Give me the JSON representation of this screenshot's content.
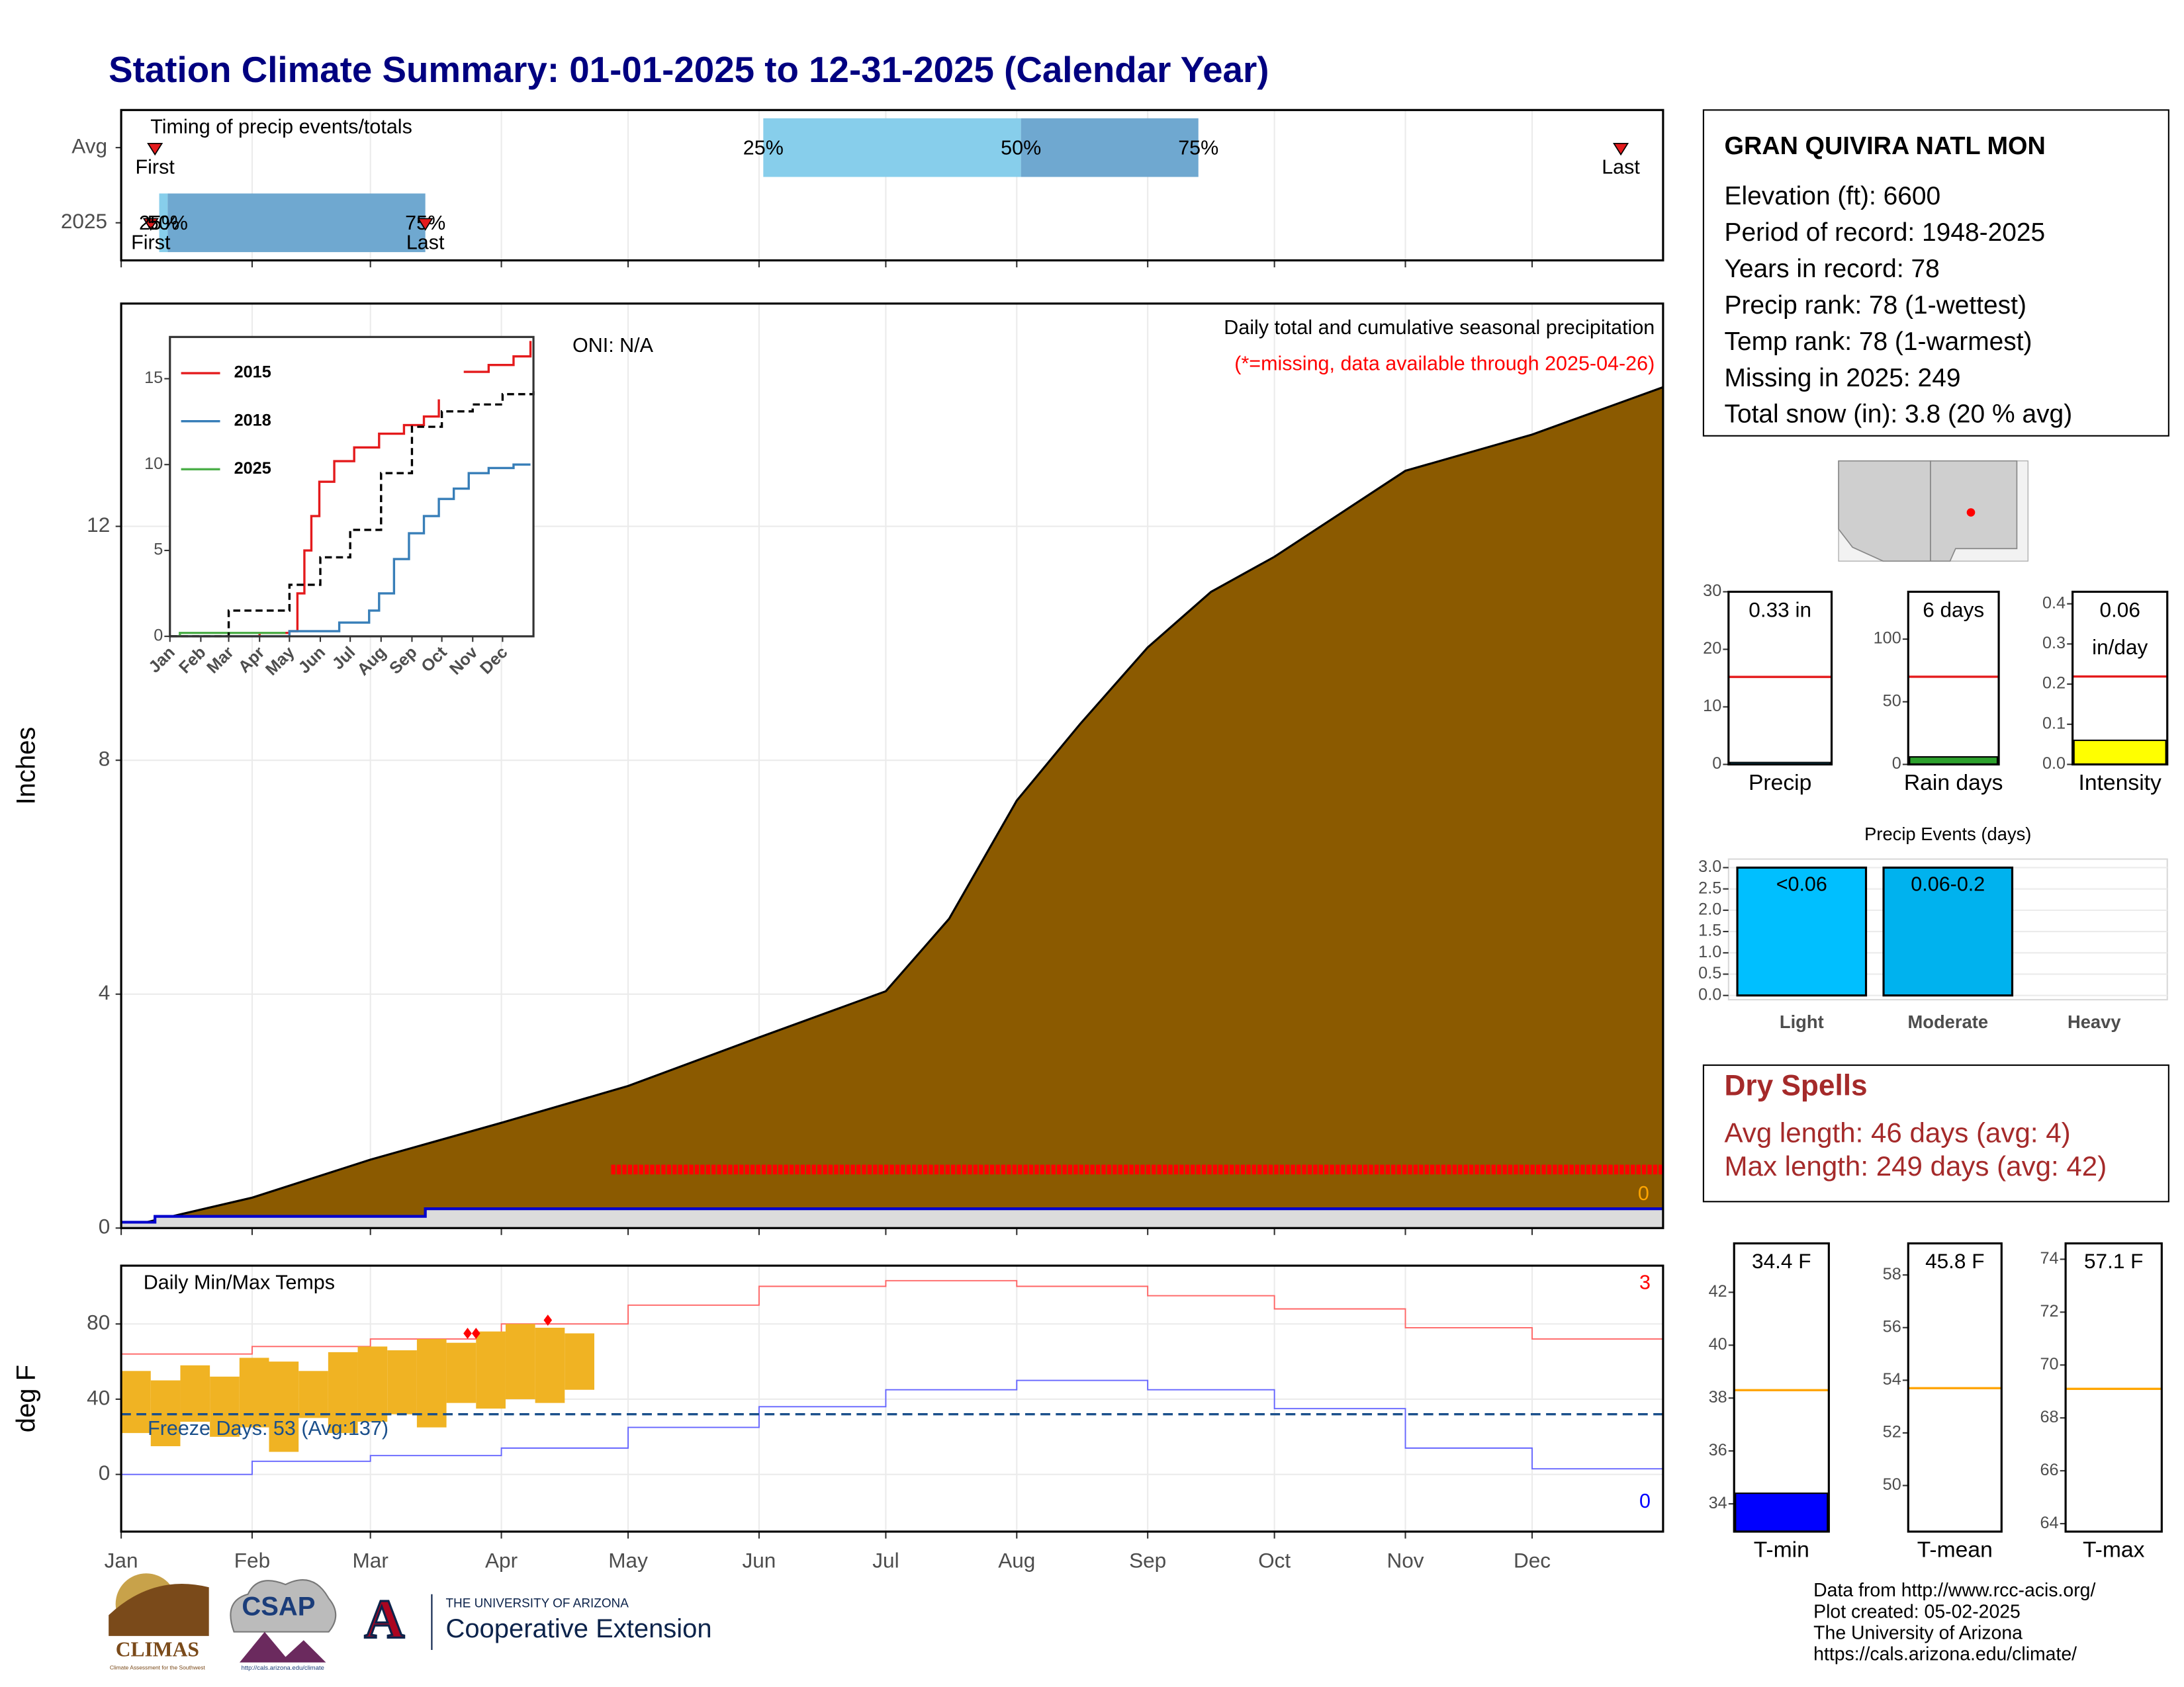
{
  "title": "Station Climate Summary: 01-01-2025 to 12-31-2025 (Calendar Year)",
  "station": {
    "name": "GRAN QUIVIRA NATL MON",
    "lines": [
      "Elevation (ft): 6600",
      "Period of record: 1948-2025",
      "Years in record: 78",
      "Precip rank: 78 (1-wettest)",
      "Temp rank: 78 (1-warmest)",
      "Missing in 2025: 249",
      "Total snow (in): 3.8 (20 % avg)"
    ]
  },
  "dry_spells": {
    "title": "Dry Spells",
    "lines": [
      "Avg length: 46 days (avg: 4)",
      "Max length: 249 days (avg: 42)"
    ]
  },
  "footer": [
    "Data from http://www.rcc-acis.org/",
    "Plot created: 05-02-2025",
    "The University of Arizona",
    "https://cals.arizona.edu/climate/"
  ],
  "logos": {
    "climas": "CLIMAS",
    "climas_tagline": "Climate Assessment for the Southwest",
    "csap": "CSAP",
    "csap_url": "http://cals.arizona.edu/climate",
    "university": "THE UNIVERSITY OF ARIZONA",
    "extension": "Cooperative Extension"
  },
  "chart_data": [
    {
      "type": "timing",
      "title": "Timing of precip events/totals",
      "xlim": [
        0,
        365
      ],
      "categories": [
        "Avg",
        "2025"
      ],
      "band_colors": [
        "#87ceeb",
        "#6fa8d0"
      ],
      "marker_color": "#e41a1c",
      "series": [
        {
          "name": "First",
          "values": [
            8,
            7
          ]
        },
        {
          "name": "25%",
          "values": [
            152,
            9
          ]
        },
        {
          "name": "50%",
          "values": [
            213,
            11
          ]
        },
        {
          "name": "75%",
          "values": [
            255,
            72
          ]
        },
        {
          "name": "Last",
          "values": [
            355,
            72
          ]
        }
      ]
    },
    {
      "type": "area",
      "title": "Daily total and cumulative seasonal precipitation",
      "subtitle": "(*=missing, data available through 2025-04-26)",
      "annotation": "ONI: N/A",
      "ylabel": "Inches",
      "xlim": [
        0,
        365
      ],
      "ylim": [
        0,
        15.81
      ],
      "yticks": [
        0,
        4,
        8,
        12
      ],
      "grid": true,
      "series": [
        {
          "color": "#8b5a00",
          "x": [
            0,
            31,
            59,
            90,
            120,
            151,
            181,
            196,
            212,
            227,
            243,
            258,
            273,
            304,
            334,
            365
          ],
          "values": [
            0,
            0.52,
            1.17,
            1.8,
            2.43,
            3.26,
            4.05,
            5.29,
            7.31,
            8.62,
            9.93,
            10.88,
            11.48,
            12.95,
            13.57,
            14.38
          ]
        },
        {
          "color": "#0000cd",
          "fill": "#dcdcdc",
          "step": true,
          "x": [
            0,
            8,
            72,
            365
          ],
          "values": [
            0.1,
            0.2,
            0.33,
            0.33
          ]
        }
      ],
      "missing": {
        "color": "#ff0000",
        "start": 116,
        "end": 365,
        "y": 1
      },
      "record_count": 0,
      "record_color": "#ffa500"
    },
    {
      "type": "line",
      "xlim": [
        0,
        365
      ],
      "ylim": [
        0,
        17.43
      ],
      "yticks": [
        0,
        5,
        10,
        15
      ],
      "xticks": [
        {
          "value": 0,
          "label": "Jan"
        },
        {
          "value": 31,
          "label": "Feb"
        },
        {
          "value": 59,
          "label": "Mar"
        },
        {
          "value": 90,
          "label": "Apr"
        },
        {
          "value": 120,
          "label": "May"
        },
        {
          "value": 151,
          "label": "Jun"
        },
        {
          "value": 181,
          "label": "Jul"
        },
        {
          "value": 212,
          "label": "Aug"
        },
        {
          "value": 243,
          "label": "Sep"
        },
        {
          "value": 273,
          "label": "Oct"
        },
        {
          "value": 304,
          "label": "Nov"
        },
        {
          "value": 334,
          "label": "Dec"
        }
      ],
      "series": [
        {
          "name": "2015",
          "color": "#e41a1c",
          "x": [
            0,
            90,
            120,
            128,
            135,
            142,
            150,
            165,
            185,
            210,
            235,
            255,
            270,
            282,
            295,
            320,
            345,
            362
          ],
          "values": [
            0,
            0.2,
            0.3,
            2.5,
            5,
            7,
            9,
            10.2,
            11,
            11.8,
            12.3,
            12.8,
            13.8,
            null,
            15.4,
            15.8,
            16.3,
            17.2
          ]
        },
        {
          "name": "2018",
          "color": "#377eb8",
          "x": [
            0,
            120,
            170,
            200,
            210,
            225,
            240,
            255,
            270,
            285,
            300,
            320,
            345,
            362
          ],
          "values": [
            0,
            0.3,
            0.8,
            1.5,
            2.5,
            4.5,
            6,
            7,
            8,
            8.6,
            9.5,
            9.8,
            10,
            10
          ]
        },
        {
          "name": "2025",
          "color": "#4daf4a",
          "x": [
            0,
            10,
            116
          ],
          "values": [
            0,
            0.2,
            0.2
          ]
        },
        {
          "color": "#000000",
          "dashed": true,
          "x": [
            0,
            59,
            120,
            151,
            181,
            212,
            243,
            273,
            304,
            334,
            365
          ],
          "values": [
            0,
            1.5,
            3,
            4.6,
            6.2,
            9.5,
            12.2,
            13.1,
            13.5,
            14.1,
            14.35
          ]
        }
      ]
    },
    {
      "type": "temperature",
      "title": "Daily Min/Max Temps",
      "ylabel": "deg F",
      "xlim": [
        0,
        365
      ],
      "ylim": [
        -30.4,
        111
      ],
      "yticks": [
        0,
        40,
        80
      ],
      "grid": true,
      "xticks": [
        {
          "value": 0,
          "label": "Jan"
        },
        {
          "value": 31,
          "label": "Feb"
        },
        {
          "value": 59,
          "label": "Mar"
        },
        {
          "value": 90,
          "label": "Apr"
        },
        {
          "value": 120,
          "label": "May"
        },
        {
          "value": 151,
          "label": "Jun"
        },
        {
          "value": 181,
          "label": "Jul"
        },
        {
          "value": 212,
          "label": "Aug"
        },
        {
          "value": 243,
          "label": "Sep"
        },
        {
          "value": 273,
          "label": "Oct"
        },
        {
          "value": 304,
          "label": "Nov"
        },
        {
          "value": 334,
          "label": "Dec"
        }
      ],
      "series": [
        {
          "color": "#ff6666",
          "x": [
            0,
            31,
            59,
            90,
            120,
            151,
            181,
            212,
            243,
            273,
            304,
            334,
            365
          ],
          "values": [
            64,
            68,
            72,
            80,
            90,
            100,
            103,
            100,
            95,
            88,
            78,
            72,
            67
          ]
        },
        {
          "color": "#6666ff",
          "x": [
            0,
            31,
            59,
            90,
            120,
            151,
            181,
            212,
            243,
            273,
            304,
            334,
            365
          ],
          "values": [
            0,
            7,
            10,
            14,
            25,
            36,
            45,
            50,
            45,
            35,
            14,
            3,
            3
          ]
        }
      ],
      "ranges": {
        "color": "#f0b323",
        "x": [
          0,
          7,
          14,
          21,
          28,
          35,
          42,
          49,
          56,
          63,
          70,
          77,
          84,
          91,
          98,
          105
        ],
        "low": [
          22,
          15,
          28,
          20,
          25,
          12,
          30,
          22,
          28,
          32,
          25,
          38,
          35,
          40,
          38,
          45
        ],
        "high": [
          55,
          50,
          58,
          52,
          62,
          60,
          55,
          65,
          68,
          66,
          72,
          70,
          76,
          80,
          78,
          75
        ]
      },
      "record_highs": {
        "color": "#ff0000",
        "x": [
          82,
          84,
          101
        ],
        "values": [
          75,
          75,
          82
        ],
        "count": 3
      },
      "record_lows": {
        "color": "#0000ff",
        "count": 0
      },
      "freeze_line": 32,
      "freeze_color": "#1a4f8b",
      "freeze_label": "Freeze Days: 53 (Avg:137)"
    },
    {
      "type": "gauge_bar",
      "categories": [
        "Precip"
      ],
      "values": [
        0.33
      ],
      "value_labels": [
        "0.33 in"
      ],
      "color": "#00bfff",
      "average": 15.2,
      "average_color": "#e41a1c",
      "ylim": [
        0,
        30
      ],
      "yticks": [
        0,
        10,
        20,
        30
      ]
    },
    {
      "type": "gauge_bar",
      "categories": [
        "Rain days"
      ],
      "values": [
        6
      ],
      "value_labels": [
        "6 days"
      ],
      "color": "#2ca02c",
      "average": 70,
      "average_color": "#e41a1c",
      "ylim": [
        0,
        137.8
      ],
      "yticks": [
        0,
        50,
        100
      ]
    },
    {
      "type": "gauge_bar",
      "categories": [
        "Intensity"
      ],
      "values": [
        0.06
      ],
      "value_labels": [
        "0.06"
      ],
      "unit": "in/day",
      "color": "#ffff00",
      "average": 0.219,
      "average_color": "#e41a1c",
      "ylim": [
        0,
        0.43
      ],
      "yticks": [
        {
          "value": 0,
          "label": "0.0"
        },
        0.1,
        0.2,
        0.3,
        0.4
      ]
    },
    {
      "type": "bar",
      "title": "Precip Events (days)",
      "categories": [
        "Light",
        "Moderate",
        "Heavy"
      ],
      "values": [
        3,
        3,
        0
      ],
      "bin_labels": [
        "<0.06",
        "0.06-0.2",
        null
      ],
      "colors": [
        "#00bfff",
        "#00b2ee",
        "#009acd"
      ],
      "ylim": [
        -0.1,
        3.2
      ],
      "yticks": [
        {
          "value": 0,
          "label": "0.0"
        },
        0.5,
        {
          "value": 1,
          "label": "1.0"
        },
        1.5,
        {
          "value": 2,
          "label": "2.0"
        },
        2.5,
        {
          "value": 3,
          "label": "3.0"
        }
      ]
    },
    {
      "type": "gauge_bar",
      "categories": [
        "T-min"
      ],
      "values": [
        34.4
      ],
      "value_labels": [
        "34.4 F"
      ],
      "color": "#0000ff",
      "average": 38.3,
      "average_color": "#ffa500",
      "ylim": [
        32.95,
        43.85
      ],
      "yticks": [
        34,
        36,
        38,
        40,
        42
      ]
    },
    {
      "type": "gauge_bar",
      "categories": [
        "T-mean"
      ],
      "values": [
        45.8
      ],
      "value_labels": [
        "45.8 F"
      ],
      "color": "#0000ff",
      "average": 53.7,
      "average_color": "#ffa500",
      "ylim": [
        48.25,
        59.2
      ],
      "yticks": [
        50,
        52,
        54,
        56,
        58
      ]
    },
    {
      "type": "gauge_bar",
      "categories": [
        "T-max"
      ],
      "values": [
        57.1
      ],
      "value_labels": [
        "57.1 F"
      ],
      "color": "#0000ff",
      "average": 69.1,
      "average_color": "#ffa500",
      "ylim": [
        63.7,
        74.6
      ],
      "yticks": [
        64,
        66,
        68,
        70,
        72,
        74
      ]
    }
  ]
}
